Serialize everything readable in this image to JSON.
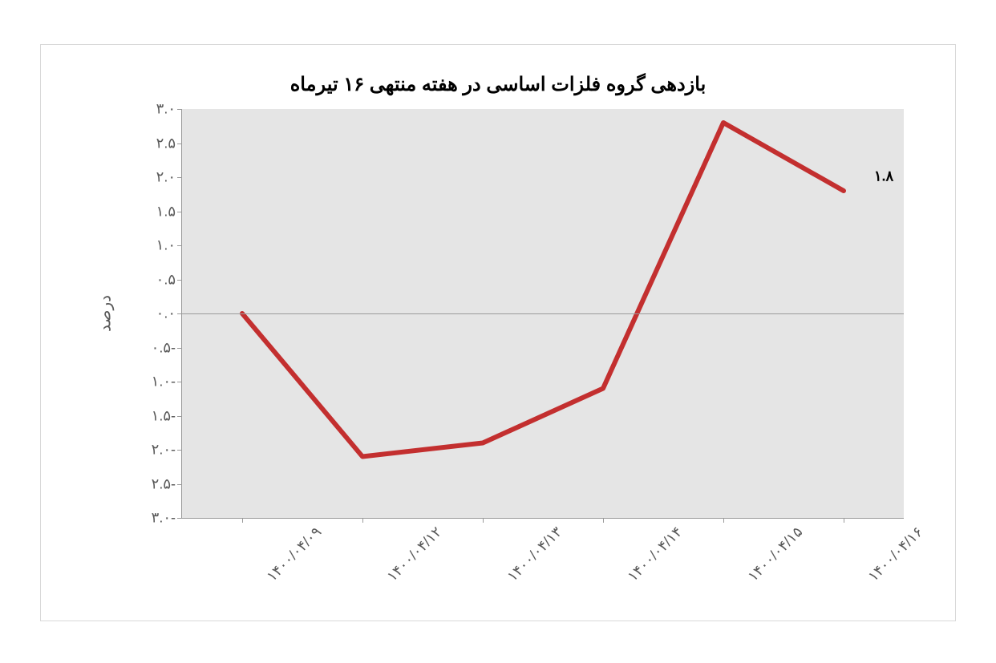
{
  "chart": {
    "type": "line",
    "title": "بازدهی گروه فلزات اساسی در هفته منتهی ۱۶ تیرماه",
    "title_fontsize": 24,
    "ylabel": "درصد",
    "ylabel_fontsize": 20,
    "background_color": "#ffffff",
    "plot_background_color": "#e5e5e5",
    "axis_color": "#9a9a9a",
    "tick_label_color": "#595959",
    "tick_label_fontsize": 18,
    "line_color": "#c32f2f",
    "line_width": 6,
    "ylim": [
      -3.0,
      3.0
    ],
    "ytick_step": 0.5,
    "yticks": [
      {
        "value": 3.0,
        "label": "۳.۰"
      },
      {
        "value": 2.5,
        "label": "۲.۵"
      },
      {
        "value": 2.0,
        "label": "۲.۰"
      },
      {
        "value": 1.5,
        "label": "۱.۵"
      },
      {
        "value": 1.0,
        "label": "۱.۰"
      },
      {
        "value": 0.5,
        "label": "۰.۵"
      },
      {
        "value": 0.0,
        "label": "۰.۰"
      },
      {
        "value": -0.5,
        "label": "-۰.۵"
      },
      {
        "value": -1.0,
        "label": "-۱.۰"
      },
      {
        "value": -1.5,
        "label": "-۱.۵"
      },
      {
        "value": -2.0,
        "label": "-۲.۰"
      },
      {
        "value": -2.5,
        "label": "-۲.۵"
      },
      {
        "value": -3.0,
        "label": "-۳.۰"
      }
    ],
    "categories": [
      "۱۴۰۰/۰۴/۰۹",
      "۱۴۰۰/۰۴/۱۲",
      "۱۴۰۰/۰۴/۱۳",
      "۱۴۰۰/۰۴/۱۴",
      "۱۴۰۰/۰۴/۱۵",
      "۱۴۰۰/۰۴/۱۶"
    ],
    "values": [
      0.0,
      -2.1,
      -1.9,
      -1.1,
      2.8,
      1.8
    ],
    "end_label": {
      "text": "۱.۸",
      "value": 1.8,
      "fontsize": 18,
      "color": "#000000"
    },
    "x_label_rotation_deg": -45
  }
}
